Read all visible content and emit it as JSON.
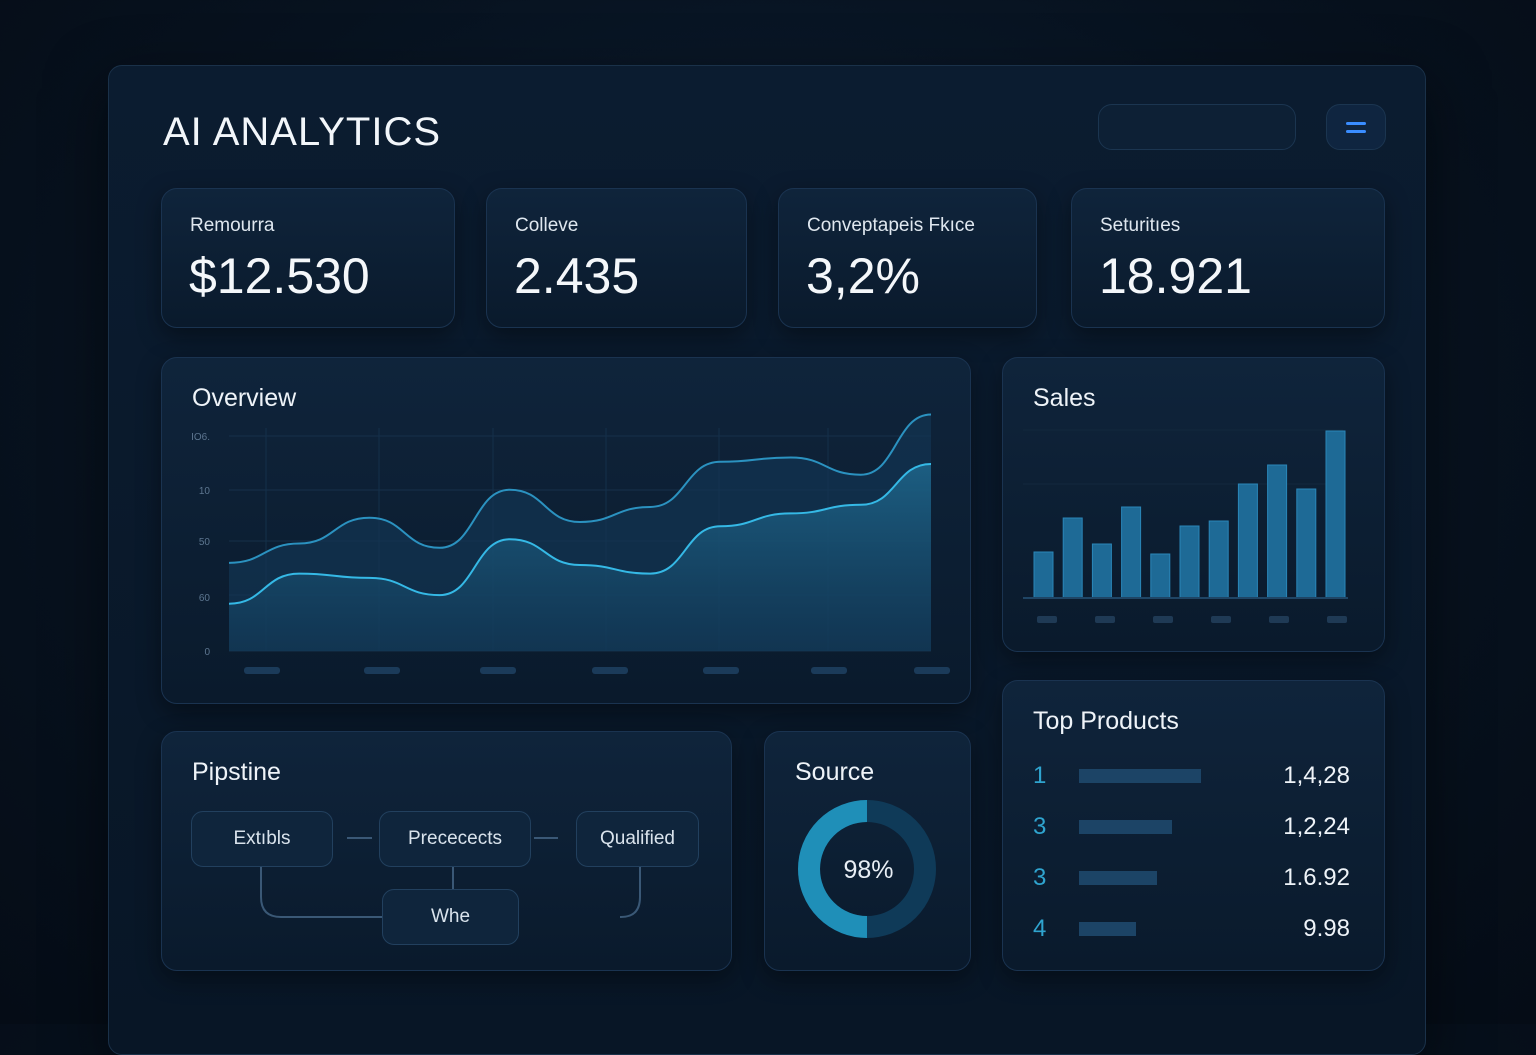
{
  "header": {
    "title": "AI ANALYTICS",
    "search_placeholder": "",
    "menu_icon": "hamburger-icon"
  },
  "colors": {
    "accent": "#2fb5e0",
    "menu_icon": "#3a8dff",
    "bar": "#1e6a96",
    "panel": "#0f243b"
  },
  "kpis": [
    {
      "label": "Remourra",
      "value": "$12.530"
    },
    {
      "label": "Colleve",
      "value": "2.435"
    },
    {
      "label": "Conveptapeis Fkıce",
      "value": "3,2%"
    },
    {
      "label": "Seturitıes",
      "value": "18.921"
    }
  ],
  "chart_data": [
    {
      "type": "area",
      "title": "Overview",
      "ylim": [
        0,
        110
      ],
      "yticks": [
        "0",
        "60",
        "50",
        "10",
        "IO6."
      ],
      "grid": true,
      "series": [
        {
          "values": [
            41,
            50,
            62,
            48,
            75,
            60,
            67,
            88,
            90,
            82,
            110
          ]
        },
        {
          "values": [
            22,
            36,
            34,
            26,
            52,
            40,
            36,
            58,
            64,
            68,
            87
          ]
        }
      ]
    },
    {
      "type": "bar",
      "title": "Sales",
      "values": [
        46,
        80,
        54,
        91,
        44,
        72,
        77,
        114,
        133,
        109,
        167
      ],
      "grid": true
    }
  ],
  "pipeline": {
    "title": "Pipstine",
    "nodes": [
      "Extıbls",
      "Prececects",
      "Qualified",
      "Whe"
    ]
  },
  "source": {
    "title": "Source",
    "value": "98%",
    "fill_fraction": 0.5
  },
  "top_products": {
    "title": "Top Products",
    "items": [
      {
        "rank": "1",
        "value": "1,4,28",
        "bar": 1.0
      },
      {
        "rank": "3",
        "value": "1,2,24",
        "bar": 0.76
      },
      {
        "rank": "3",
        "value": "1.6.92",
        "bar": 0.64
      },
      {
        "rank": "4",
        "value": "9.98",
        "bar": 0.47
      }
    ]
  }
}
